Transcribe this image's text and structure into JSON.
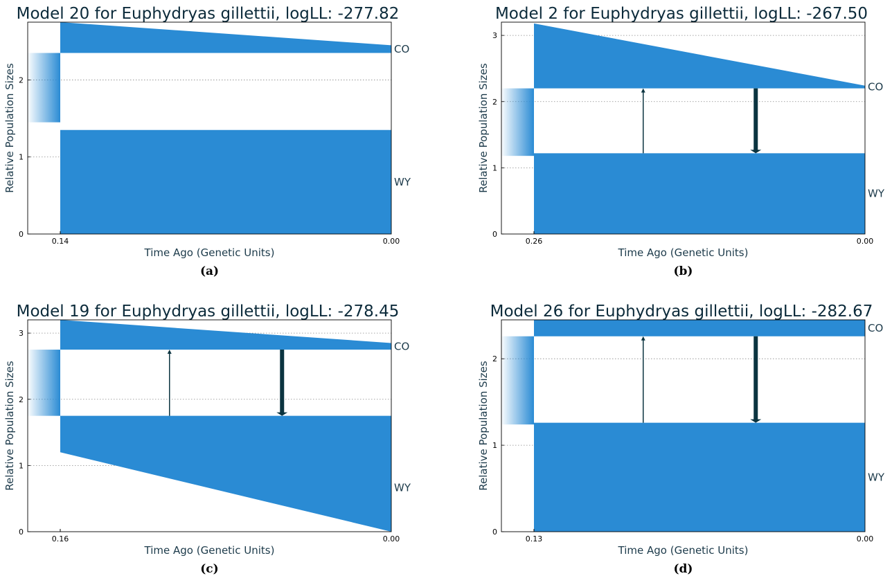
{
  "chart_data": [
    {
      "type": "area",
      "caption": "(a)",
      "title": "Model 20 for Euphydryas gillettii, logLL: -277.82",
      "xlabel": "Time Ago (Genetic Units)",
      "ylabel": "Relative Population Sizes",
      "split_time": 0.14,
      "split_label": "0.14",
      "end_label": "0.00",
      "ylim": [
        0,
        2.75
      ],
      "yticks": [
        0,
        1,
        2
      ],
      "ancestral_size": 0.9,
      "grid": true,
      "populations": [
        {
          "name": "WY",
          "start_size": 1.35,
          "end_size": 1.35
        },
        {
          "name": "CO",
          "start_size": 0.4,
          "end_size": 0.1
        }
      ],
      "migrations": [],
      "colors": {
        "population": "#2a8bd4",
        "grid": "#888888",
        "arrow": "#0b3440"
      }
    },
    {
      "type": "area",
      "caption": "(b)",
      "title": "Model 2 for Euphydryas gillettii, logLL: -267.50",
      "xlabel": "Time Ago (Genetic Units)",
      "ylabel": "Relative Population Sizes",
      "split_time": 0.26,
      "split_label": "0.26",
      "end_label": "0.00",
      "ylim": [
        0,
        3.2
      ],
      "yticks": [
        0,
        1,
        2,
        3
      ],
      "ancestral_size": 1.02,
      "grid": true,
      "populations": [
        {
          "name": "WY",
          "start_size": 1.22,
          "end_size": 1.22
        },
        {
          "name": "CO",
          "start_size": 0.98,
          "end_size": 0.04
        }
      ],
      "migrations": [
        {
          "direction": "up",
          "position": 0.33,
          "thickness": 1.5
        },
        {
          "direction": "down",
          "position": 0.67,
          "thickness": 6
        }
      ],
      "colors": {
        "population": "#2a8bd4",
        "grid": "#888888",
        "arrow": "#0b3440"
      }
    },
    {
      "type": "area",
      "caption": "(c)",
      "title": "Model 19 for Euphydryas gillettii, logLL: -278.45",
      "xlabel": "Time Ago (Genetic Units)",
      "ylabel": "Relative Population Sizes",
      "split_time": 0.16,
      "split_label": "0.16",
      "end_label": "0.00",
      "ylim": [
        0,
        3.2
      ],
      "yticks": [
        0,
        1,
        2,
        3
      ],
      "ancestral_size": 1.0,
      "grid": true,
      "populations": [
        {
          "name": "WY",
          "start_size": 0.55,
          "end_size": 1.75
        },
        {
          "name": "CO",
          "start_size": 0.45,
          "end_size": 0.1
        }
      ],
      "migrations": [
        {
          "direction": "up",
          "position": 0.33,
          "thickness": 1.5
        },
        {
          "direction": "down",
          "position": 0.67,
          "thickness": 6
        }
      ],
      "colors": {
        "population": "#2a8bd4",
        "grid": "#888888",
        "arrow": "#0b3440"
      }
    },
    {
      "type": "area",
      "caption": "(d)",
      "title": "Model 26 for Euphydryas gillettii, logLL: -282.67",
      "xlabel": "Time Ago (Genetic Units)",
      "ylabel": "Relative Population Sizes",
      "split_time": 0.13,
      "split_label": "0.13",
      "end_label": "0.00",
      "ylim": [
        0,
        2.45
      ],
      "yticks": [
        0,
        1,
        2
      ],
      "ancestral_size": 1.02,
      "grid": true,
      "populations": [
        {
          "name": "WY",
          "start_size": 1.26,
          "end_size": 1.26
        },
        {
          "name": "CO",
          "start_size": 0.19,
          "end_size": 0.19
        }
      ],
      "migrations": [
        {
          "direction": "up",
          "position": 0.33,
          "thickness": 1.5
        },
        {
          "direction": "down",
          "position": 0.67,
          "thickness": 6
        }
      ],
      "colors": {
        "population": "#2a8bd4",
        "grid": "#888888",
        "arrow": "#0b3440"
      }
    }
  ]
}
